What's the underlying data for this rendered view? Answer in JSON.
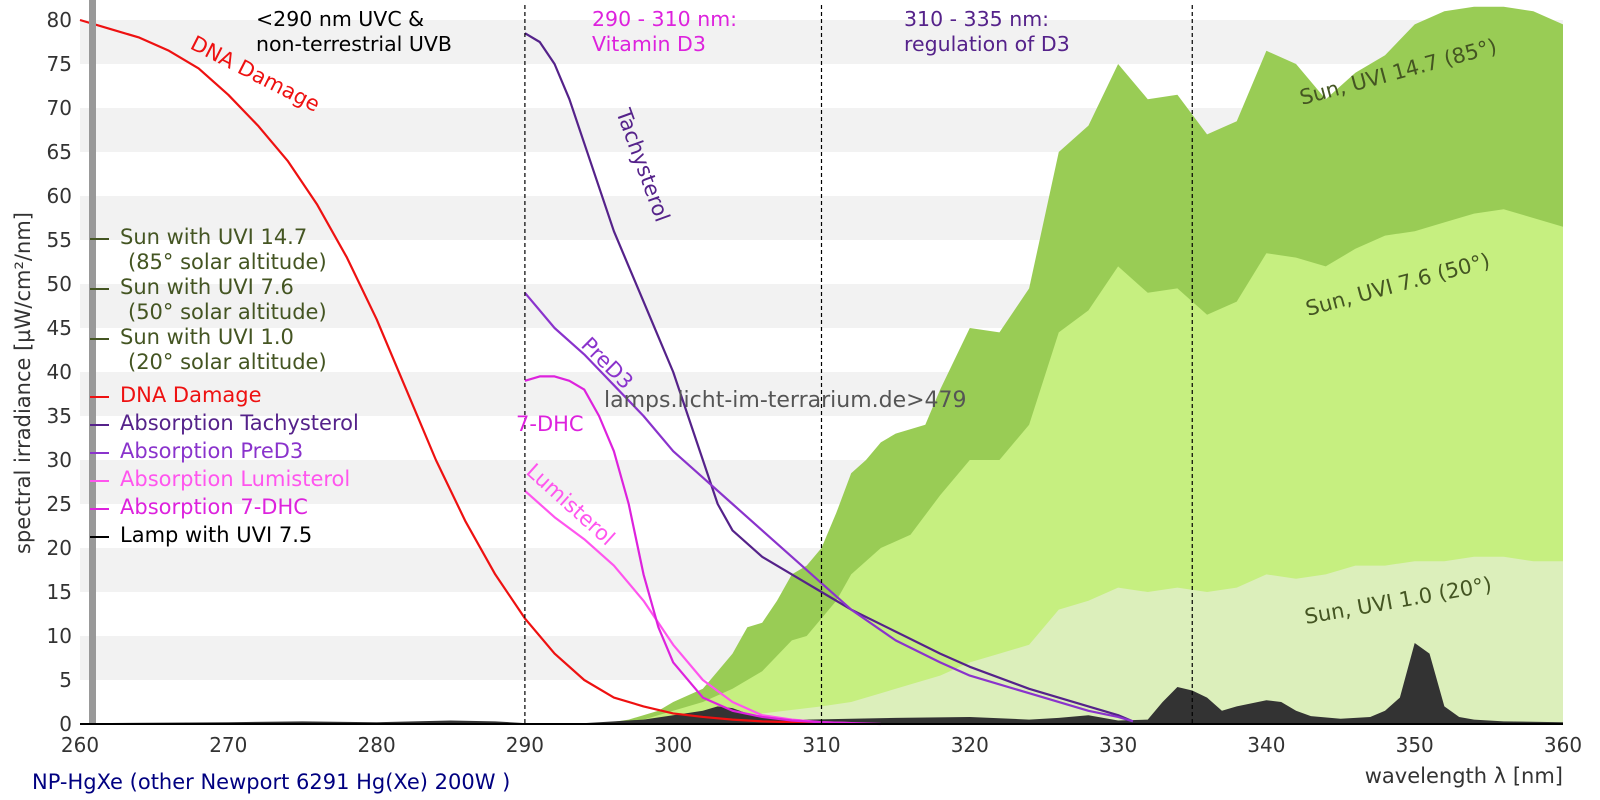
{
  "chart_data": {
    "type": "area",
    "xlabel": "wavelength λ [nm]",
    "ylabel": "spectral irradiance [µW/cm²/nm]",
    "xlim": [
      260,
      360
    ],
    "ylim": [
      0,
      80
    ],
    "x_ticks": [
      "260",
      "270",
      "280",
      "290",
      "300",
      "310",
      "320",
      "330",
      "340",
      "350",
      "360"
    ],
    "y_ticks": [
      "0",
      "5",
      "10",
      "15",
      "20",
      "25",
      "30",
      "35",
      "40",
      "45",
      "50",
      "55",
      "60",
      "65",
      "70",
      "75",
      "80"
    ],
    "grid": "horizontal alternating bands",
    "legend_position": "left",
    "colors": {
      "sun_uvi_14_7": "#99cc55",
      "sun_uvi_7_6": "#c6ef80",
      "sun_uvi_1_0": "#dcefbb",
      "dna": "#ee1111",
      "tachysterol": "#55228a",
      "pred3": "#8a33cc",
      "lumisterol": "#ff55ee",
      "dhc": "#dd22dd",
      "lamp": "#333333",
      "sun_text": "#445522"
    },
    "regions": [
      {
        "x": 290,
        "label_line1": "<290 nm UVC &",
        "label_line2": "non-terrestrial UVB"
      },
      {
        "x": 310,
        "label_line1": "290 - 310 nm:",
        "label_line2": "Vitamin D3"
      },
      {
        "x": 335,
        "label_line1": "310 - 335 nm:",
        "label_line2": "regulation of D3"
      }
    ],
    "legend": [
      {
        "line1": "Sun with UVI 14.7",
        "line2": "(85° solar altitude)"
      },
      {
        "line1": "Sun with UVI 7.6",
        "line2": "(50° solar altitude)"
      },
      {
        "line1": "Sun with UVI 1.0",
        "line2": "(20° solar altitude)"
      },
      {
        "line1": "DNA Damage"
      },
      {
        "line1": "Absorption Tachysterol"
      },
      {
        "line1": "Absorption PreD3"
      },
      {
        "line1": "Absorption Lumisterol"
      },
      {
        "line1": "Absorption 7-DHC"
      },
      {
        "line1": "Lamp with UVI 7.5"
      }
    ],
    "series": [
      {
        "name": "Sun, UVI 14.7 (85°)",
        "kind": "area",
        "x": [
          295,
          297,
          299,
          300,
          302,
          303,
          304,
          305,
          306,
          307,
          308,
          309,
          310,
          311,
          312,
          313,
          314,
          315,
          317,
          318,
          320,
          322,
          324,
          326,
          328,
          330,
          332,
          334,
          336,
          338,
          340,
          342,
          344,
          346,
          348,
          350,
          352,
          354,
          356,
          358,
          360
        ],
        "y": [
          0,
          0.5,
          1.5,
          2.5,
          4,
          6,
          8,
          11,
          11.5,
          14,
          17,
          18,
          20,
          24,
          28.5,
          30,
          32,
          33,
          34,
          38,
          45,
          44.5,
          49.5,
          65,
          68,
          75,
          71,
          71.5,
          67,
          68.5,
          76.5,
          75,
          71,
          74,
          76,
          79.5,
          81,
          83,
          83,
          81,
          79.5
        ]
      },
      {
        "name": "Sun, UVI 7.6 (50°)",
        "kind": "area",
        "x": [
          296,
          298,
          300,
          302,
          304,
          306,
          308,
          309,
          310,
          311,
          312,
          314,
          316,
          318,
          320,
          322,
          324,
          326,
          328,
          330,
          332,
          334,
          336,
          338,
          340,
          342,
          344,
          346,
          348,
          350,
          352,
          354,
          356,
          358,
          360
        ],
        "y": [
          0,
          0.5,
          1.5,
          2.5,
          4,
          6,
          9.5,
          10,
          12,
          14,
          17,
          20,
          21.5,
          26,
          30,
          30,
          34,
          44.5,
          47,
          52,
          49,
          49.5,
          46.5,
          48,
          53.5,
          53,
          52,
          54,
          55.5,
          56,
          57,
          58,
          58.5,
          57.5,
          56.5
        ]
      },
      {
        "name": "Sun, UVI 1.0 (20°)",
        "kind": "area",
        "x": [
          300,
          305,
          310,
          312,
          314,
          316,
          318,
          320,
          322,
          324,
          326,
          328,
          330,
          332,
          334,
          336,
          338,
          340,
          342,
          344,
          346,
          348,
          350,
          352,
          354,
          356,
          358,
          360
        ],
        "y": [
          0,
          1,
          2,
          2.5,
          3.5,
          4.5,
          5.5,
          7,
          8,
          9,
          13,
          14,
          15.5,
          15,
          15.5,
          15,
          15.5,
          17,
          16.5,
          17,
          18,
          18,
          18.5,
          18.5,
          19,
          19,
          18.5,
          18.5
        ]
      },
      {
        "name": "Lamp with UVI 7.5",
        "kind": "area",
        "x": [
          261,
          270,
          275,
          280,
          285,
          288,
          291,
          293,
          296,
          298,
          300,
          302,
          303,
          304,
          305,
          306,
          307,
          309,
          312,
          315,
          320,
          324,
          326,
          328,
          330,
          332,
          333,
          334,
          335,
          336,
          337,
          338,
          340,
          341,
          342,
          343,
          345,
          347,
          348,
          349,
          350,
          351,
          352,
          353,
          354,
          356,
          360
        ],
        "y": [
          0.1,
          0.2,
          0.3,
          0.2,
          0.4,
          0.3,
          0,
          0,
          0.3,
          0.5,
          1,
          1.5,
          2,
          1.8,
          1.2,
          0.8,
          0.6,
          0.5,
          0.6,
          0.7,
          0.8,
          0.5,
          0.7,
          1,
          0.4,
          0.5,
          2.5,
          4.2,
          3.8,
          3,
          1.5,
          2,
          2.7,
          2.5,
          1.5,
          0.9,
          0.6,
          0.8,
          1.5,
          3,
          9.2,
          8,
          2,
          0.8,
          0.5,
          0.3,
          0.2
        ]
      },
      {
        "name": "DNA Damage",
        "kind": "line",
        "x": [
          260,
          262,
          264,
          266,
          268,
          270,
          272,
          274,
          276,
          278,
          280,
          282,
          284,
          286,
          288,
          290,
          292,
          294,
          296,
          298,
          300,
          302,
          304,
          306,
          308,
          310
        ],
        "y": [
          80,
          79,
          78,
          76.5,
          74.5,
          71.5,
          68,
          64,
          59,
          53,
          46,
          38,
          30,
          23,
          17,
          12,
          8,
          5,
          3,
          2,
          1.2,
          0.8,
          0.5,
          0.3,
          0.2,
          0.1
        ]
      },
      {
        "name": "Tachysterol",
        "kind": "line",
        "x": [
          290,
          291,
          292,
          293,
          294,
          295,
          296,
          297,
          298,
          299,
          300,
          301,
          302,
          303,
          304,
          306,
          308,
          310,
          312,
          315,
          318,
          320,
          324,
          328,
          330,
          331
        ],
        "y": [
          78.5,
          77.5,
          75,
          71,
          66,
          61,
          56,
          52,
          48,
          44,
          40,
          35,
          30,
          25,
          22,
          19,
          17,
          15,
          13,
          10.5,
          8,
          6.5,
          4,
          2,
          1,
          0.3
        ]
      },
      {
        "name": "PreD3",
        "kind": "line",
        "x": [
          290,
          292,
          294,
          296,
          298,
          300,
          302,
          304,
          306,
          308,
          310,
          312,
          315,
          318,
          320,
          324,
          328,
          330,
          331
        ],
        "y": [
          49,
          45,
          42,
          38.5,
          35,
          31,
          28,
          25,
          22,
          19,
          16,
          13,
          9.5,
          7,
          5.5,
          3.5,
          1.5,
          0.8,
          0.3
        ]
      },
      {
        "name": "Lumisterol",
        "kind": "line",
        "x": [
          290,
          292,
          294,
          296,
          298,
          300,
          302,
          304,
          306,
          308,
          310,
          312
        ],
        "y": [
          26.5,
          23.5,
          21,
          18,
          14,
          9,
          5,
          2.5,
          1,
          0.5,
          0.2,
          0.1
        ]
      },
      {
        "name": "7-DHC",
        "kind": "line",
        "x": [
          290,
          291,
          292,
          293,
          294,
          295,
          296,
          297,
          298,
          299,
          300,
          302,
          304,
          306,
          308,
          310,
          314
        ],
        "y": [
          39,
          39.5,
          39.5,
          39,
          38,
          35,
          31,
          25,
          17,
          11,
          7,
          3,
          1.5,
          0.8,
          0.4,
          0.2,
          0
        ]
      }
    ],
    "curve_labels": {
      "sun_147": "Sun, UVI 14.7 (85°)",
      "sun_76": "Sun, UVI 7.6 (50°)",
      "sun_10": "Sun, UVI 1.0 (20°)",
      "dna": "DNA Damage",
      "tachysterol": "Tachysterol",
      "pred3": "PreD3",
      "lumisterol": "Lumisterol",
      "dhc": "7-DHC"
    },
    "watermark": "lamps.licht-im-terrarium.de>479",
    "footer": "NP-HgXe (other Newport 6291 Hg(Xe) 200W )"
  }
}
